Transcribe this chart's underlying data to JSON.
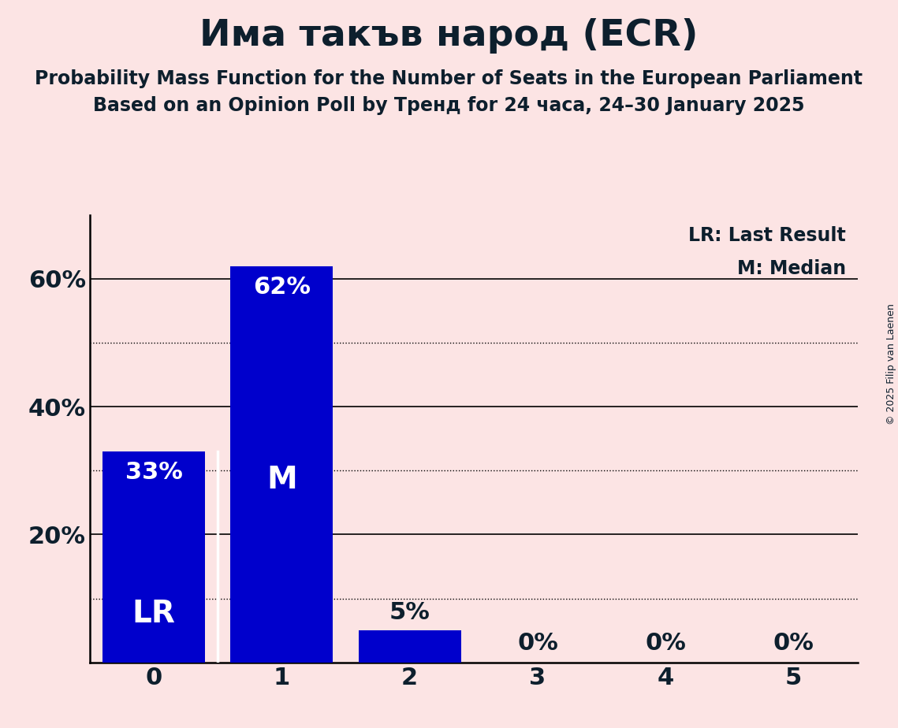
{
  "title": "Има такъв народ (ECR)",
  "subtitle1": "Probability Mass Function for the Number of Seats in the European Parliament",
  "subtitle2": "Based on an Opinion Poll by Тренд for 24 часа, 24–30 January 2025",
  "copyright": "© 2025 Filip van Laenen",
  "categories": [
    0,
    1,
    2,
    3,
    4,
    5
  ],
  "values": [
    33,
    62,
    5,
    0,
    0,
    0
  ],
  "bar_color": "#0000cc",
  "background_color": "#fce4e4",
  "text_color": "#0d1f2d",
  "bar_label_color_inside": "#ffffff",
  "bar_label_color_outside": "#0d1f2d",
  "lr_bar": 0,
  "median_bar": 1,
  "ylim": [
    0,
    70
  ],
  "yticks_solid": [
    20,
    40,
    60
  ],
  "yticks_dotted": [
    10,
    30,
    50
  ],
  "legend_lr": "LR: Last Result",
  "legend_m": "M: Median",
  "title_fontsize": 34,
  "subtitle_fontsize": 17,
  "axis_fontsize": 22,
  "bar_label_fontsize": 22,
  "legend_fontsize": 17,
  "copyright_fontsize": 9
}
